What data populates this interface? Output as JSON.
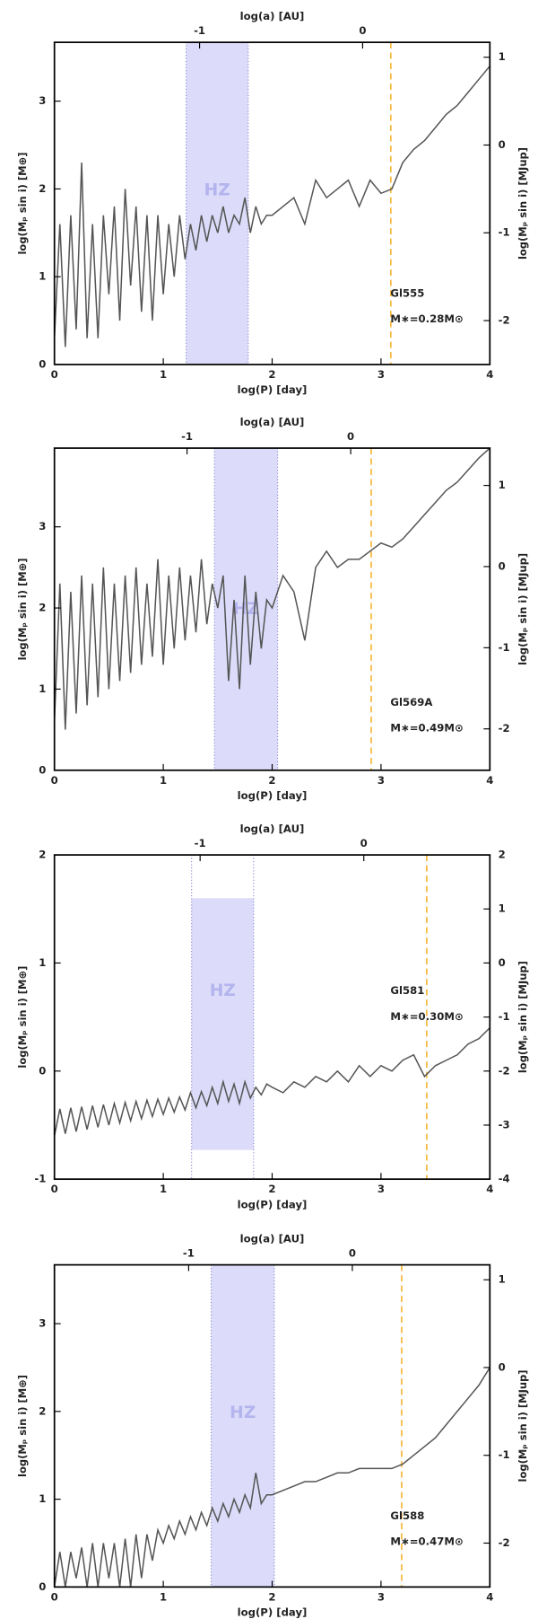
{
  "chart_data": [
    {
      "type": "line",
      "xlabel": "log(P) [day]",
      "ylabel": "log(Mₚ sin i) [M⊕]",
      "y2label": "log(Mₚ sin i) [MJup]",
      "x2label": "log(a) [AU]",
      "xlim": [
        0,
        4
      ],
      "xticks": [
        0,
        1,
        2,
        3,
        4
      ],
      "ylim": [
        0,
        3.67
      ],
      "yticks": [
        0,
        1,
        2,
        3
      ],
      "y2lim": [
        -2.5,
        1.17
      ],
      "y2ticks": [
        -2,
        -1,
        0,
        1
      ],
      "x2lim": [
        -1.89,
        0.78
      ],
      "x2ticks": [
        -1,
        0
      ],
      "hz": [
        1.21,
        1.78
      ],
      "hz_label": "HZ",
      "vline": 3.09,
      "annotations": [
        "Gl555",
        "M∗=0.28M⊙"
      ],
      "color": "#555555",
      "x": [
        0,
        0.05,
        0.1,
        0.15,
        0.2,
        0.25,
        0.3,
        0.35,
        0.4,
        0.45,
        0.5,
        0.55,
        0.6,
        0.65,
        0.7,
        0.75,
        0.8,
        0.85,
        0.9,
        0.95,
        1,
        1.05,
        1.1,
        1.15,
        1.2,
        1.25,
        1.3,
        1.35,
        1.4,
        1.45,
        1.5,
        1.55,
        1.6,
        1.65,
        1.7,
        1.75,
        1.8,
        1.85,
        1.9,
        1.95,
        2,
        2.1,
        2.2,
        2.3,
        2.4,
        2.5,
        2.6,
        2.7,
        2.8,
        2.9,
        3,
        3.1,
        3.2,
        3.3,
        3.4,
        3.5,
        3.6,
        3.7,
        3.8,
        3.9,
        4
      ],
      "values": [
        0.3,
        1.6,
        0.2,
        1.7,
        0.4,
        2.3,
        0.3,
        1.6,
        0.3,
        1.7,
        0.8,
        1.8,
        0.5,
        2.0,
        0.9,
        1.8,
        0.6,
        1.7,
        0.5,
        1.7,
        0.8,
        1.6,
        1.0,
        1.7,
        1.2,
        1.6,
        1.3,
        1.7,
        1.4,
        1.7,
        1.5,
        1.8,
        1.5,
        1.7,
        1.6,
        1.9,
        1.5,
        1.8,
        1.6,
        1.7,
        1.7,
        1.8,
        1.9,
        1.6,
        2.1,
        1.9,
        2.0,
        2.1,
        1.8,
        2.1,
        1.95,
        2.0,
        2.3,
        2.45,
        2.55,
        2.7,
        2.85,
        2.95,
        3.1,
        3.25,
        3.4
      ]
    },
    {
      "type": "line",
      "xlabel": "log(P) [day]",
      "ylabel": "log(Mₚ sin i) [M⊕]",
      "y2label": "log(Mₚ sin i) [MJup]",
      "x2label": "log(a) [AU]",
      "xlim": [
        0,
        4
      ],
      "xticks": [
        0,
        1,
        2,
        3,
        4
      ],
      "ylim": [
        0,
        3.97
      ],
      "yticks": [
        0,
        1,
        2,
        3
      ],
      "y2lim": [
        -2.51,
        1.46
      ],
      "y2ticks": [
        -2,
        -1,
        0,
        1
      ],
      "x2lim": [
        -1.81,
        0.85
      ],
      "x2ticks": [
        -1,
        0
      ],
      "hz": [
        1.47,
        2.05
      ],
      "hz_label": "HZ",
      "vline": 2.91,
      "annotations": [
        "Gl569A",
        "M∗=0.49M⊙"
      ],
      "color": "#555555",
      "x": [
        0,
        0.05,
        0.1,
        0.15,
        0.2,
        0.25,
        0.3,
        0.35,
        0.4,
        0.45,
        0.5,
        0.55,
        0.6,
        0.65,
        0.7,
        0.75,
        0.8,
        0.85,
        0.9,
        0.95,
        1,
        1.05,
        1.1,
        1.15,
        1.2,
        1.25,
        1.3,
        1.35,
        1.4,
        1.45,
        1.5,
        1.55,
        1.6,
        1.65,
        1.7,
        1.75,
        1.8,
        1.85,
        1.9,
        1.95,
        2,
        2.1,
        2.2,
        2.3,
        2.4,
        2.5,
        2.6,
        2.7,
        2.8,
        2.9,
        3,
        3.1,
        3.2,
        3.3,
        3.4,
        3.5,
        3.6,
        3.7,
        3.8,
        3.9,
        4
      ],
      "values": [
        0.6,
        2.3,
        0.5,
        2.2,
        0.7,
        2.4,
        0.8,
        2.3,
        0.9,
        2.5,
        1.0,
        2.3,
        1.1,
        2.4,
        1.2,
        2.5,
        1.3,
        2.3,
        1.4,
        2.6,
        1.3,
        2.4,
        1.5,
        2.5,
        1.6,
        2.4,
        1.7,
        2.6,
        1.8,
        2.3,
        2.0,
        2.4,
        1.1,
        2.1,
        1.0,
        2.4,
        1.3,
        2.2,
        1.5,
        2.1,
        2.0,
        2.4,
        2.2,
        1.6,
        2.5,
        2.7,
        2.5,
        2.6,
        2.6,
        2.7,
        2.8,
        2.75,
        2.85,
        3.0,
        3.15,
        3.3,
        3.45,
        3.55,
        3.7,
        3.85,
        3.97
      ]
    },
    {
      "type": "line",
      "xlabel": "log(P) [day]",
      "ylabel": "log(Mₚ sin i) [M⊕]",
      "y2label": "log(Mₚ sin i) [MJup]",
      "x2label": "log(a) [AU]",
      "xlim": [
        0,
        4
      ],
      "xticks": [
        0,
        1,
        2,
        3,
        4
      ],
      "ylim": [
        -1,
        2
      ],
      "yticks": [
        -1,
        0,
        1,
        2
      ],
      "y2lim": [
        -4,
        2
      ],
      "y2ticks": [
        -4,
        -3,
        -2,
        -1,
        0,
        1,
        2
      ],
      "x2lim": [
        -1.89,
        0.77
      ],
      "x2ticks": [
        -1,
        0
      ],
      "hz": [
        1.26,
        1.83
      ],
      "hz_y": [
        -0.73,
        1.6
      ],
      "hz_label": "HZ",
      "vline": 3.42,
      "annotations": [
        "Gl581",
        "M∗=0.30M⊙"
      ],
      "color": "#555555",
      "x": [
        0,
        0.05,
        0.1,
        0.15,
        0.2,
        0.25,
        0.3,
        0.35,
        0.4,
        0.45,
        0.5,
        0.55,
        0.6,
        0.65,
        0.7,
        0.75,
        0.8,
        0.85,
        0.9,
        0.95,
        1,
        1.05,
        1.1,
        1.15,
        1.2,
        1.25,
        1.3,
        1.35,
        1.4,
        1.45,
        1.5,
        1.55,
        1.6,
        1.65,
        1.7,
        1.75,
        1.8,
        1.85,
        1.9,
        1.95,
        2,
        2.1,
        2.2,
        2.3,
        2.4,
        2.5,
        2.6,
        2.7,
        2.8,
        2.9,
        3,
        3.1,
        3.2,
        3.3,
        3.4,
        3.5,
        3.6,
        3.7,
        3.8,
        3.9,
        4
      ],
      "values": [
        -0.6,
        -0.35,
        -0.58,
        -0.34,
        -0.56,
        -0.33,
        -0.54,
        -0.32,
        -0.52,
        -0.31,
        -0.5,
        -0.3,
        -0.48,
        -0.29,
        -0.46,
        -0.28,
        -0.44,
        -0.27,
        -0.42,
        -0.26,
        -0.4,
        -0.25,
        -0.38,
        -0.24,
        -0.36,
        -0.2,
        -0.34,
        -0.19,
        -0.32,
        -0.15,
        -0.3,
        -0.1,
        -0.28,
        -0.12,
        -0.3,
        -0.1,
        -0.25,
        -0.15,
        -0.22,
        -0.12,
        -0.15,
        -0.2,
        -0.1,
        -0.15,
        -0.05,
        -0.1,
        0.0,
        -0.1,
        0.05,
        -0.05,
        0.05,
        0.0,
        0.1,
        0.15,
        -0.05,
        0.05,
        0.1,
        0.15,
        0.25,
        0.3,
        0.4
      ]
    },
    {
      "type": "line",
      "xlabel": "log(P) [day]",
      "ylabel": "log(Mₚ sin i) [M⊕]",
      "y2label": "log(Mₚ sin i) [MJup]",
      "x2label": "log(a) [AU]",
      "xlim": [
        0,
        4
      ],
      "xticks": [
        0,
        1,
        2,
        3,
        4
      ],
      "ylim": [
        0,
        3.67
      ],
      "yticks": [
        0,
        1,
        2,
        3
      ],
      "y2lim": [
        -2.5,
        1.17
      ],
      "y2ticks": [
        -2,
        -1,
        0,
        1
      ],
      "x2lim": [
        -1.82,
        0.84
      ],
      "x2ticks": [
        -1,
        0
      ],
      "hz": [
        1.44,
        2.02
      ],
      "hz_label": "HZ",
      "vline": 3.19,
      "annotations": [
        "Gl588",
        "M∗=0.47M⊙"
      ],
      "color": "#555555",
      "x": [
        0,
        0.05,
        0.1,
        0.15,
        0.2,
        0.25,
        0.3,
        0.35,
        0.4,
        0.45,
        0.5,
        0.55,
        0.6,
        0.65,
        0.7,
        0.75,
        0.8,
        0.85,
        0.9,
        0.95,
        1,
        1.05,
        1.1,
        1.15,
        1.2,
        1.25,
        1.3,
        1.35,
        1.4,
        1.45,
        1.5,
        1.55,
        1.6,
        1.65,
        1.7,
        1.75,
        1.8,
        1.85,
        1.9,
        1.95,
        2,
        2.1,
        2.2,
        2.3,
        2.4,
        2.5,
        2.6,
        2.7,
        2.8,
        2.9,
        3,
        3.1,
        3.2,
        3.3,
        3.4,
        3.5,
        3.6,
        3.7,
        3.8,
        3.9,
        4
      ],
      "values": [
        0.0,
        0.4,
        0.0,
        0.4,
        0.1,
        0.45,
        0.0,
        0.5,
        0.0,
        0.5,
        0.1,
        0.5,
        0.0,
        0.55,
        0.0,
        0.6,
        0.1,
        0.6,
        0.3,
        0.65,
        0.5,
        0.7,
        0.55,
        0.75,
        0.6,
        0.8,
        0.65,
        0.85,
        0.7,
        0.9,
        0.75,
        0.95,
        0.8,
        1.0,
        0.85,
        1.05,
        0.9,
        1.3,
        0.95,
        1.05,
        1.05,
        1.1,
        1.15,
        1.2,
        1.2,
        1.25,
        1.3,
        1.3,
        1.35,
        1.35,
        1.35,
        1.35,
        1.4,
        1.5,
        1.6,
        1.7,
        1.85,
        2.0,
        2.15,
        2.3,
        2.5
      ]
    }
  ]
}
